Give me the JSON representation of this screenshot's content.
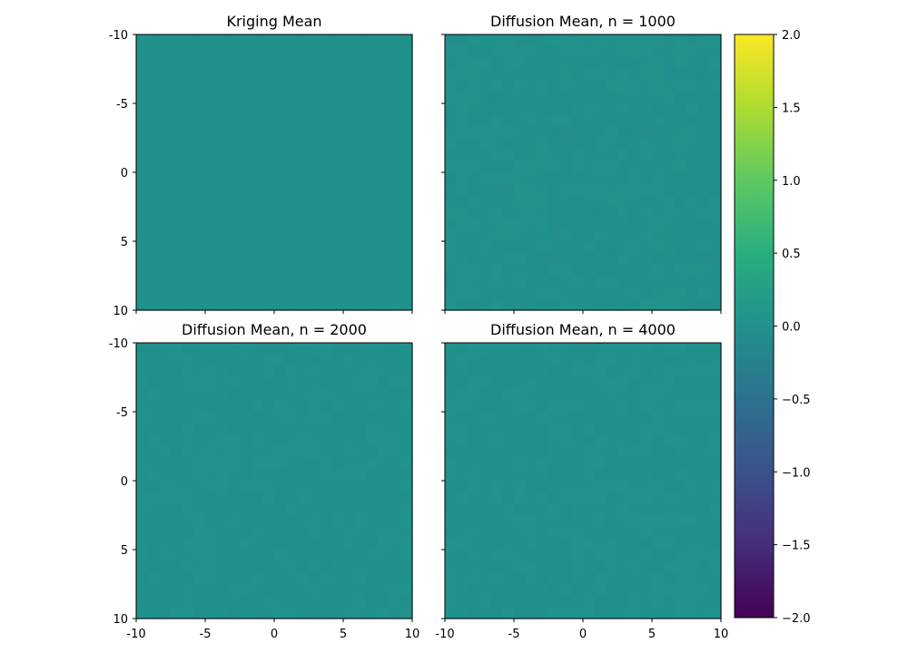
{
  "chart_data": {
    "type": "heatmap",
    "panels": [
      {
        "title": "Kriging Mean",
        "x_extent": [
          -10,
          10
        ],
        "y_extent": [
          -10,
          10
        ],
        "y_inverted": true,
        "approx_value": 0.0,
        "noise": 0.0
      },
      {
        "title": "Diffusion Mean, n = 1000",
        "x_extent": [
          -10,
          10
        ],
        "y_extent": [
          -10,
          10
        ],
        "y_inverted": true,
        "approx_value": 0.0,
        "noise": 0.035
      },
      {
        "title": "Diffusion Mean, n = 2000",
        "x_extent": [
          -10,
          10
        ],
        "y_extent": [
          -10,
          10
        ],
        "y_inverted": true,
        "approx_value": 0.0,
        "noise": 0.025
      },
      {
        "title": "Diffusion Mean, n = 4000",
        "x_extent": [
          -10,
          10
        ],
        "y_extent": [
          -10,
          10
        ],
        "y_inverted": true,
        "approx_value": 0.0,
        "noise": 0.02
      }
    ],
    "y_tick_labels": [
      "-10",
      "-5",
      "0",
      "5",
      "10"
    ],
    "y_tick_values": [
      -10,
      -5,
      0,
      5,
      10
    ],
    "x_tick_labels": [
      "-10",
      "-5",
      "0",
      "5",
      "10"
    ],
    "x_tick_values": [
      -10,
      -5,
      0,
      5,
      10
    ],
    "colorbar": {
      "colormap": "viridis",
      "vmin": -2.0,
      "vmax": 2.0,
      "tick_values": [
        2.0,
        1.5,
        1.0,
        0.5,
        0.0,
        -0.5,
        -1.0,
        -1.5,
        -2.0
      ],
      "tick_labels": [
        "2.0",
        "1.5",
        "1.0",
        "0.5",
        "0.0",
        "−0.5",
        "−1.0",
        "−1.5",
        "−2.0"
      ]
    }
  }
}
